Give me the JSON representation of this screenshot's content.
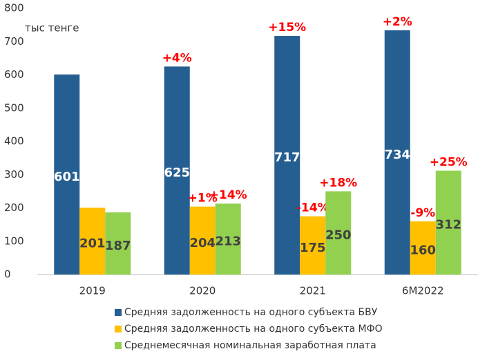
{
  "chart_data": {
    "type": "bar",
    "y_label": "тыс тенге",
    "categories": [
      "2019",
      "2020",
      "2021",
      "6M2022"
    ],
    "series": [
      {
        "name": "Средняя задолженность на одного субъекта БВУ",
        "color": "#255e91",
        "values": [
          601,
          625,
          717,
          734
        ],
        "changes": [
          null,
          "+4%",
          "+15%",
          "+2%"
        ]
      },
      {
        "name": "Средняя задолженность на одного субъекта МФО",
        "color": "#ffc000",
        "values": [
          201,
          204,
          175,
          160
        ],
        "changes": [
          null,
          "+1%",
          "-14%",
          "-9%"
        ]
      },
      {
        "name": "Среднемесячная номинальная заработная плата",
        "color": "#92d050",
        "values": [
          187,
          213,
          250,
          312
        ],
        "changes": [
          null,
          "+14%",
          "+18%",
          "+25%"
        ]
      }
    ],
    "ylim": [
      0,
      800
    ],
    "yticks": [
      0,
      100,
      200,
      300,
      400,
      500,
      600,
      700,
      800
    ],
    "grid": false
  }
}
